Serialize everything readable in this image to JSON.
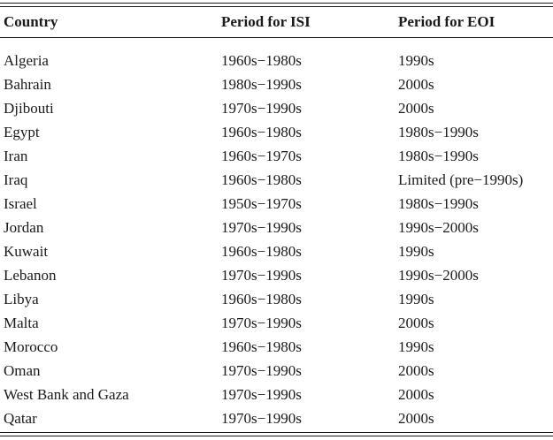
{
  "table": {
    "headers": [
      "Country",
      "Period for ISI",
      "Period for EOI"
    ],
    "rows": [
      [
        "Algeria",
        "1960s−1980s",
        "1990s"
      ],
      [
        "Bahrain",
        "1980s−1990s",
        "2000s"
      ],
      [
        "Djibouti",
        "1970s−1990s",
        "2000s"
      ],
      [
        "Egypt",
        "1960s−1980s",
        "1980s−1990s"
      ],
      [
        "Iran",
        "1960s−1970s",
        "1980s−1990s"
      ],
      [
        "Iraq",
        "1960s−1980s",
        "Limited (pre−1990s)"
      ],
      [
        "Israel",
        "1950s−1970s",
        "1980s−1990s"
      ],
      [
        "Jordan",
        "1970s−1990s",
        "1990s−2000s"
      ],
      [
        "Kuwait",
        "1960s−1980s",
        "1990s"
      ],
      [
        "Lebanon",
        "1970s−1990s",
        "1990s−2000s"
      ],
      [
        "Libya",
        "1960s−1980s",
        "1990s"
      ],
      [
        "Malta",
        "1970s−1990s",
        "2000s"
      ],
      [
        "Morocco",
        "1960s−1980s",
        "1990s"
      ],
      [
        "Oman",
        "1970s−1990s",
        "2000s"
      ],
      [
        "West Bank and Gaza",
        "1970s−1990s",
        "2000s"
      ],
      [
        "Qatar",
        "1970s−1990s",
        "2000s"
      ]
    ]
  }
}
